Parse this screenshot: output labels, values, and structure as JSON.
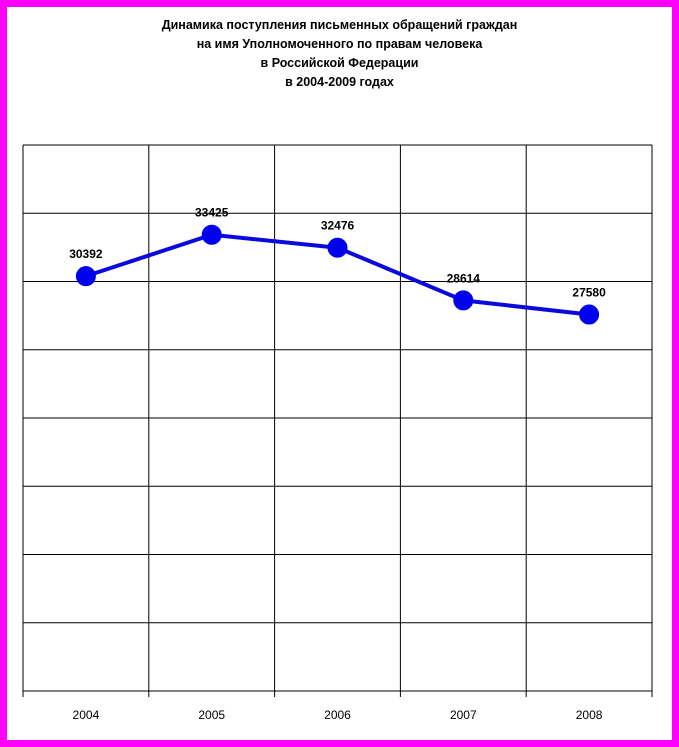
{
  "title_lines": [
    "Динамика поступления письменных обращений граждан",
    "на имя Уполномоченного по правам человека",
    "в Российской  Федерации",
    "в 2004-2009 годах"
  ],
  "colors": {
    "frame": "#ff00ff",
    "series": "#0a0adc",
    "marker": "#0000ee",
    "grid": "#000000"
  },
  "chart_data": {
    "type": "line",
    "title": "Динамика поступления письменных обращений граждан на имя Уполномоченного по правам человека в Российской  Федерации в 2004-2009 годах",
    "categories": [
      "2004",
      "2005",
      "2006",
      "2007",
      "2008"
    ],
    "series": [
      {
        "values": [
          30392,
          33425,
          32476,
          28614,
          27580
        ]
      }
    ],
    "data_labels": [
      "30392",
      "33425",
      "32476",
      "28614",
      "27580"
    ],
    "ylim": [
      0,
      40000
    ],
    "y_gridlines": 8,
    "grid": true,
    "y_tick_labels_shown": false,
    "legend": "none",
    "xlabel": "",
    "ylabel": ""
  }
}
